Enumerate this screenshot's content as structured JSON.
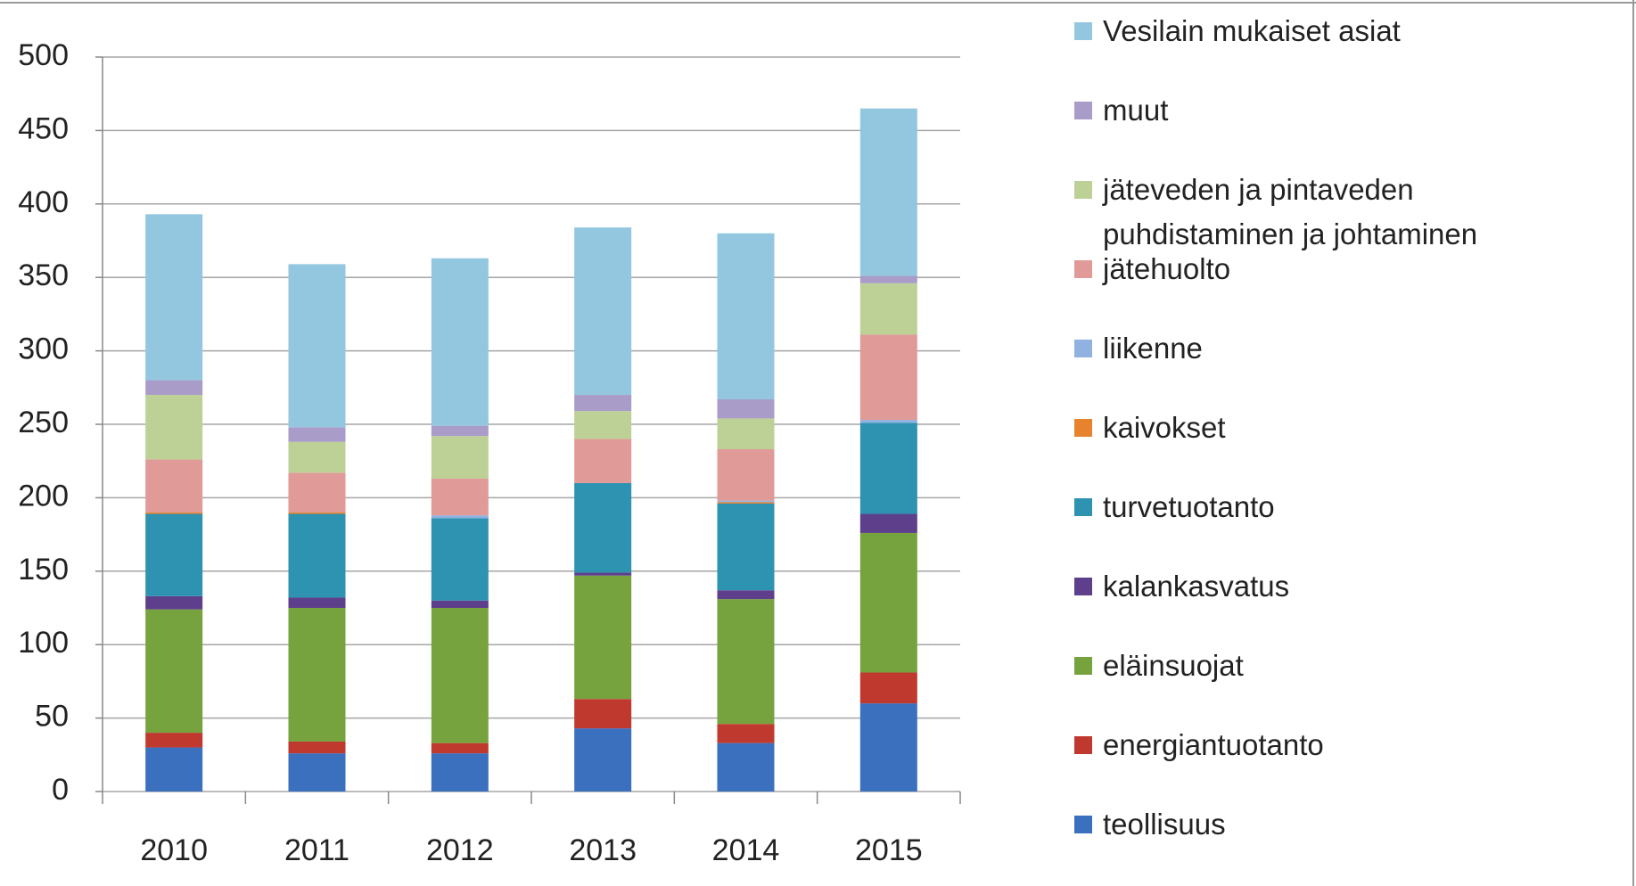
{
  "chart_data": {
    "type": "stacked_bar",
    "categories": [
      "2010",
      "2011",
      "2012",
      "2013",
      "2014",
      "2015"
    ],
    "ylim": [
      0,
      500
    ],
    "yticks": [
      0,
      50,
      100,
      150,
      200,
      250,
      300,
      350,
      400,
      450,
      500
    ],
    "grid": true,
    "series": [
      {
        "name": "teollisuus",
        "color": "#3b70bf",
        "values": [
          30,
          26,
          26,
          43,
          33,
          60
        ]
      },
      {
        "name": "energiantuotanto",
        "color": "#c0392f",
        "values": [
          10,
          8,
          7,
          20,
          13,
          21
        ]
      },
      {
        "name": "eläinsuojat",
        "color": "#77a33e",
        "values": [
          84,
          91,
          92,
          84,
          85,
          95
        ]
      },
      {
        "name": "kalankasvatus",
        "color": "#5e3f8c",
        "values": [
          9,
          7,
          5,
          2,
          6,
          13
        ]
      },
      {
        "name": "turvetuotanto",
        "color": "#2e93b0",
        "values": [
          56,
          57,
          56,
          61,
          59,
          62
        ]
      },
      {
        "name": "kaivokset",
        "color": "#e6832c",
        "values": [
          1,
          1,
          0,
          0,
          1,
          0
        ]
      },
      {
        "name": "liikenne",
        "color": "#8fb2e0",
        "values": [
          0,
          0,
          2,
          0,
          1,
          2
        ]
      },
      {
        "name": "jätehuolto",
        "color": "#e09a98",
        "values": [
          36,
          27,
          25,
          30,
          35,
          58
        ]
      },
      {
        "name": "jäteveden ja pintaveden puhdistaminen ja johtaminen",
        "color": "#bdd196",
        "values": [
          44,
          21,
          29,
          19,
          21,
          35
        ]
      },
      {
        "name": "muut",
        "color": "#aa9cc8",
        "values": [
          10,
          10,
          7,
          11,
          13,
          5
        ]
      },
      {
        "name": "Vesilain mukaiset asiat",
        "color": "#93c7df",
        "values": [
          113,
          111,
          114,
          114,
          113,
          114
        ]
      }
    ]
  }
}
